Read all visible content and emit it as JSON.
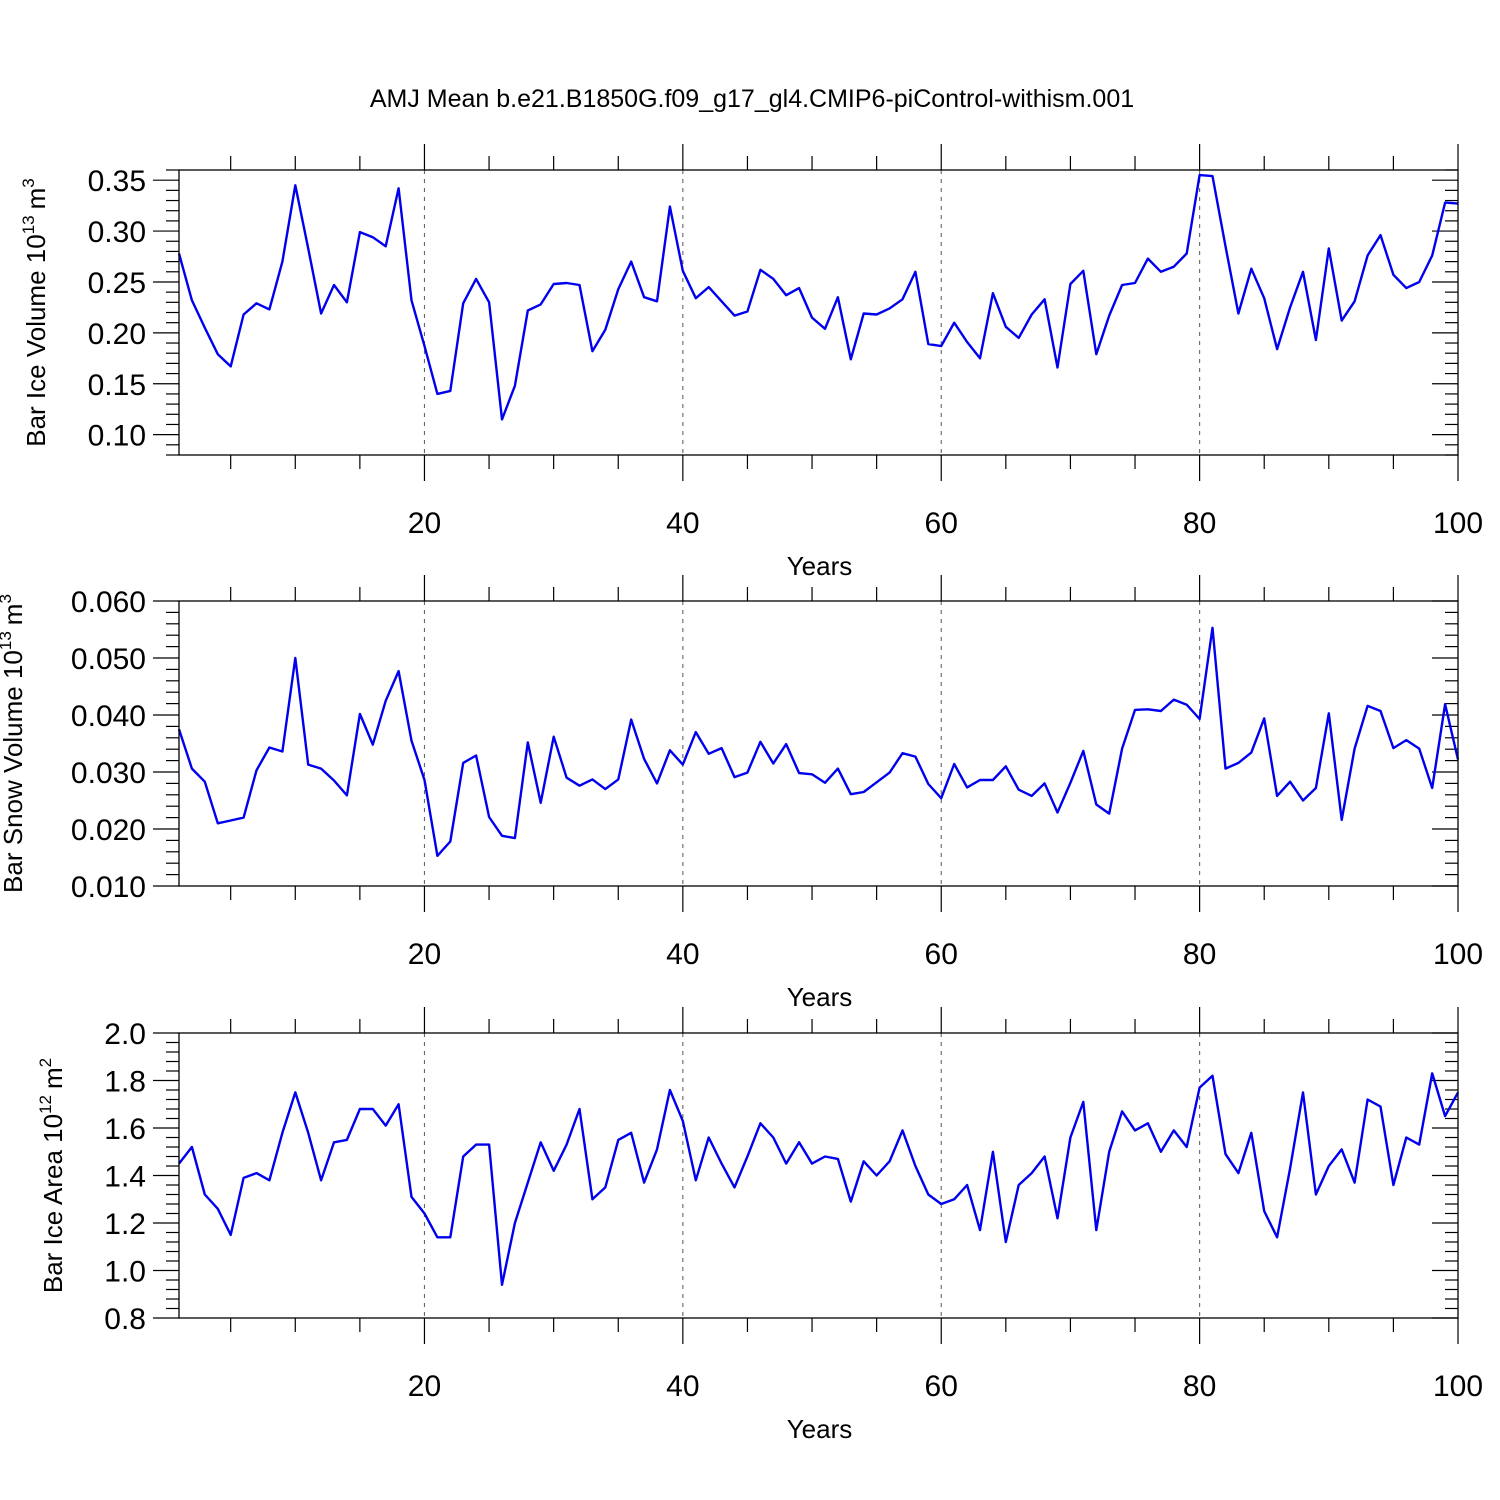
{
  "title": "AMJ Mean b.e21.B1850G.f09_g17_gl4.CMIP6-piControl-withism.001",
  "colors": {
    "line": "#0000ee",
    "grid": "#666666"
  },
  "chart_data": [
    {
      "type": "line",
      "xlabel": "Years",
      "ylabel": "Bar Ice Volume 10",
      "ylabel_exp": "13",
      "ylabel_unit": "m",
      "ylabel_unit_exp": "3",
      "xlim": [
        1,
        100
      ],
      "ylim": [
        0.08,
        0.36
      ],
      "yticks": [
        "0.10",
        "0.15",
        "0.20",
        "0.25",
        "0.30",
        "0.35"
      ],
      "xticks": [
        "20",
        "40",
        "60",
        "80",
        "100"
      ],
      "grid_x": [
        20,
        40,
        60,
        80
      ],
      "values": [
        0.278,
        0.232,
        0.205,
        0.179,
        0.167,
        0.218,
        0.229,
        0.223,
        0.27,
        0.345,
        0.283,
        0.219,
        0.247,
        0.23,
        0.299,
        0.294,
        0.285,
        0.342,
        0.232,
        0.187,
        0.14,
        0.143,
        0.229,
        0.253,
        0.23,
        0.115,
        0.148,
        0.222,
        0.228,
        0.248,
        0.249,
        0.247,
        0.182,
        0.203,
        0.243,
        0.27,
        0.235,
        0.231,
        0.324,
        0.261,
        0.234,
        0.245,
        0.231,
        0.217,
        0.221,
        0.262,
        0.253,
        0.237,
        0.244,
        0.215,
        0.204,
        0.235,
        0.174,
        0.219,
        0.218,
        0.224,
        0.233,
        0.26,
        0.189,
        0.187,
        0.21,
        0.191,
        0.175,
        0.239,
        0.206,
        0.195,
        0.218,
        0.233,
        0.166,
        0.248,
        0.261,
        0.179,
        0.217,
        0.247,
        0.249,
        0.273,
        0.26,
        0.265,
        0.278,
        0.355,
        0.354,
        0.285,
        0.219,
        0.263,
        0.234,
        0.184,
        0.225,
        0.26,
        0.193,
        0.283,
        0.212,
        0.231,
        0.276,
        0.296,
        0.257,
        0.244,
        0.25,
        0.276,
        0.328,
        0.327
      ]
    },
    {
      "type": "line",
      "xlabel": "Years",
      "ylabel": "Bar Snow Volume 10",
      "ylabel_exp": "13",
      "ylabel_unit": "m",
      "ylabel_unit_exp": "3",
      "xlim": [
        1,
        100
      ],
      "ylim": [
        0.01,
        0.06
      ],
      "yticks": [
        "0.010",
        "0.020",
        "0.030",
        "0.040",
        "0.050",
        "0.060"
      ],
      "xticks": [
        "20",
        "40",
        "60",
        "80",
        "100"
      ],
      "grid_x": [
        20,
        40,
        60,
        80
      ],
      "values": [
        0.0375,
        0.0306,
        0.0283,
        0.021,
        0.0215,
        0.022,
        0.0303,
        0.0343,
        0.0336,
        0.05,
        0.0313,
        0.0306,
        0.0285,
        0.0259,
        0.0402,
        0.0348,
        0.0425,
        0.0477,
        0.0355,
        0.0286,
        0.0153,
        0.0178,
        0.0316,
        0.0329,
        0.0221,
        0.0188,
        0.0184,
        0.0352,
        0.0246,
        0.0362,
        0.029,
        0.0276,
        0.0287,
        0.027,
        0.0287,
        0.0392,
        0.0323,
        0.028,
        0.0338,
        0.0313,
        0.037,
        0.0332,
        0.0342,
        0.0291,
        0.0299,
        0.0353,
        0.0315,
        0.0349,
        0.0298,
        0.0296,
        0.0281,
        0.0306,
        0.0261,
        0.0265,
        0.0282,
        0.0299,
        0.0333,
        0.0327,
        0.0279,
        0.0254,
        0.0314,
        0.0273,
        0.0286,
        0.0286,
        0.031,
        0.0269,
        0.0258,
        0.028,
        0.0229,
        0.0281,
        0.0337,
        0.0243,
        0.0227,
        0.0341,
        0.0409,
        0.041,
        0.0407,
        0.0427,
        0.0418,
        0.0393,
        0.0553,
        0.0306,
        0.0316,
        0.0334,
        0.0394,
        0.0258,
        0.0283,
        0.025,
        0.0272,
        0.0403,
        0.0216,
        0.0341,
        0.0416,
        0.0407,
        0.0342,
        0.0356,
        0.0341,
        0.0272,
        0.0419,
        0.0322
      ]
    },
    {
      "type": "line",
      "xlabel": "Years",
      "ylabel": "Bar Ice Area 10",
      "ylabel_exp": "12",
      "ylabel_unit": "m",
      "ylabel_unit_exp": "2",
      "xlim": [
        1,
        100
      ],
      "ylim": [
        0.8,
        2.0
      ],
      "yticks": [
        "0.8",
        "1.0",
        "1.2",
        "1.4",
        "1.6",
        "1.8",
        "2.0"
      ],
      "xticks": [
        "20",
        "40",
        "60",
        "80",
        "100"
      ],
      "grid_x": [
        20,
        40,
        60,
        80
      ],
      "values": [
        1.45,
        1.52,
        1.32,
        1.26,
        1.15,
        1.39,
        1.41,
        1.38,
        1.58,
        1.75,
        1.58,
        1.38,
        1.54,
        1.55,
        1.68,
        1.68,
        1.61,
        1.7,
        1.31,
        1.24,
        1.14,
        1.14,
        1.48,
        1.53,
        1.53,
        0.94,
        1.2,
        1.37,
        1.54,
        1.42,
        1.53,
        1.68,
        1.3,
        1.35,
        1.55,
        1.58,
        1.37,
        1.51,
        1.76,
        1.63,
        1.38,
        1.56,
        1.45,
        1.35,
        1.48,
        1.62,
        1.56,
        1.45,
        1.54,
        1.45,
        1.48,
        1.47,
        1.29,
        1.46,
        1.4,
        1.46,
        1.59,
        1.44,
        1.32,
        1.28,
        1.3,
        1.36,
        1.17,
        1.5,
        1.12,
        1.36,
        1.41,
        1.48,
        1.22,
        1.56,
        1.71,
        1.17,
        1.5,
        1.67,
        1.59,
        1.62,
        1.5,
        1.59,
        1.52,
        1.77,
        1.82,
        1.49,
        1.41,
        1.58,
        1.25,
        1.14,
        1.43,
        1.75,
        1.32,
        1.44,
        1.51,
        1.37,
        1.72,
        1.69,
        1.36,
        1.56,
        1.53,
        1.83,
        1.65,
        1.75
      ]
    }
  ]
}
